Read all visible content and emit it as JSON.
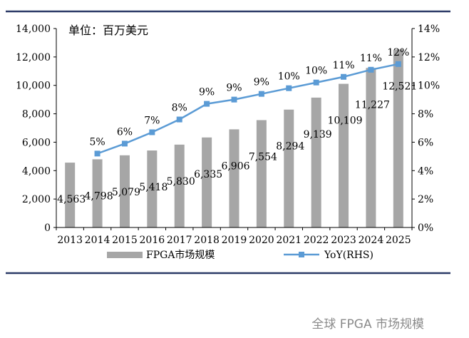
{
  "chart_data": {
    "type": "bar",
    "unit_label": "单位：百万美元",
    "categories": [
      "2013",
      "2014",
      "2015",
      "2016",
      "2017",
      "2018",
      "2019",
      "2020",
      "2021",
      "2022",
      "2023",
      "2024",
      "2025"
    ],
    "series": [
      {
        "name": "FPGA市场规模",
        "type": "bar",
        "axis": "left",
        "values": [
          4563,
          4798,
          5079,
          5418,
          5830,
          6335,
          6906,
          7554,
          8294,
          9139,
          10109,
          11227,
          12521
        ],
        "labels": [
          "4,563",
          "4,798",
          "5,079",
          "5,418",
          "5,830",
          "6,335",
          "6,906",
          "7,554",
          "8,294",
          "9,139",
          "10,109",
          "11,227",
          "12,521"
        ],
        "color": "#a6a6a6"
      },
      {
        "name": "YoY(RHS)",
        "type": "line",
        "axis": "right",
        "values": [
          null,
          5.2,
          5.9,
          6.7,
          7.6,
          8.7,
          9.0,
          9.4,
          9.8,
          10.2,
          10.6,
          11.1,
          11.5
        ],
        "labels": [
          "",
          "5%",
          "6%",
          "7%",
          "8%",
          "9%",
          "9%",
          "9%",
          "10%",
          "10%",
          "11%",
          "11%",
          "12%"
        ],
        "color": "#5b9bd5"
      }
    ],
    "y_left": {
      "min": 0,
      "max": 14000,
      "step": 2000,
      "ticks": [
        "0",
        "2,000",
        "4,000",
        "6,000",
        "8,000",
        "10,000",
        "12,000",
        "14,000"
      ]
    },
    "y_right": {
      "min": 0,
      "max": 14,
      "step": 2,
      "ticks": [
        "0%",
        "2%",
        "4%",
        "6%",
        "8%",
        "10%",
        "12%",
        "14%"
      ]
    },
    "grid": false,
    "legend_position": "bottom"
  },
  "caption": "全球 FPGA 市场规模"
}
